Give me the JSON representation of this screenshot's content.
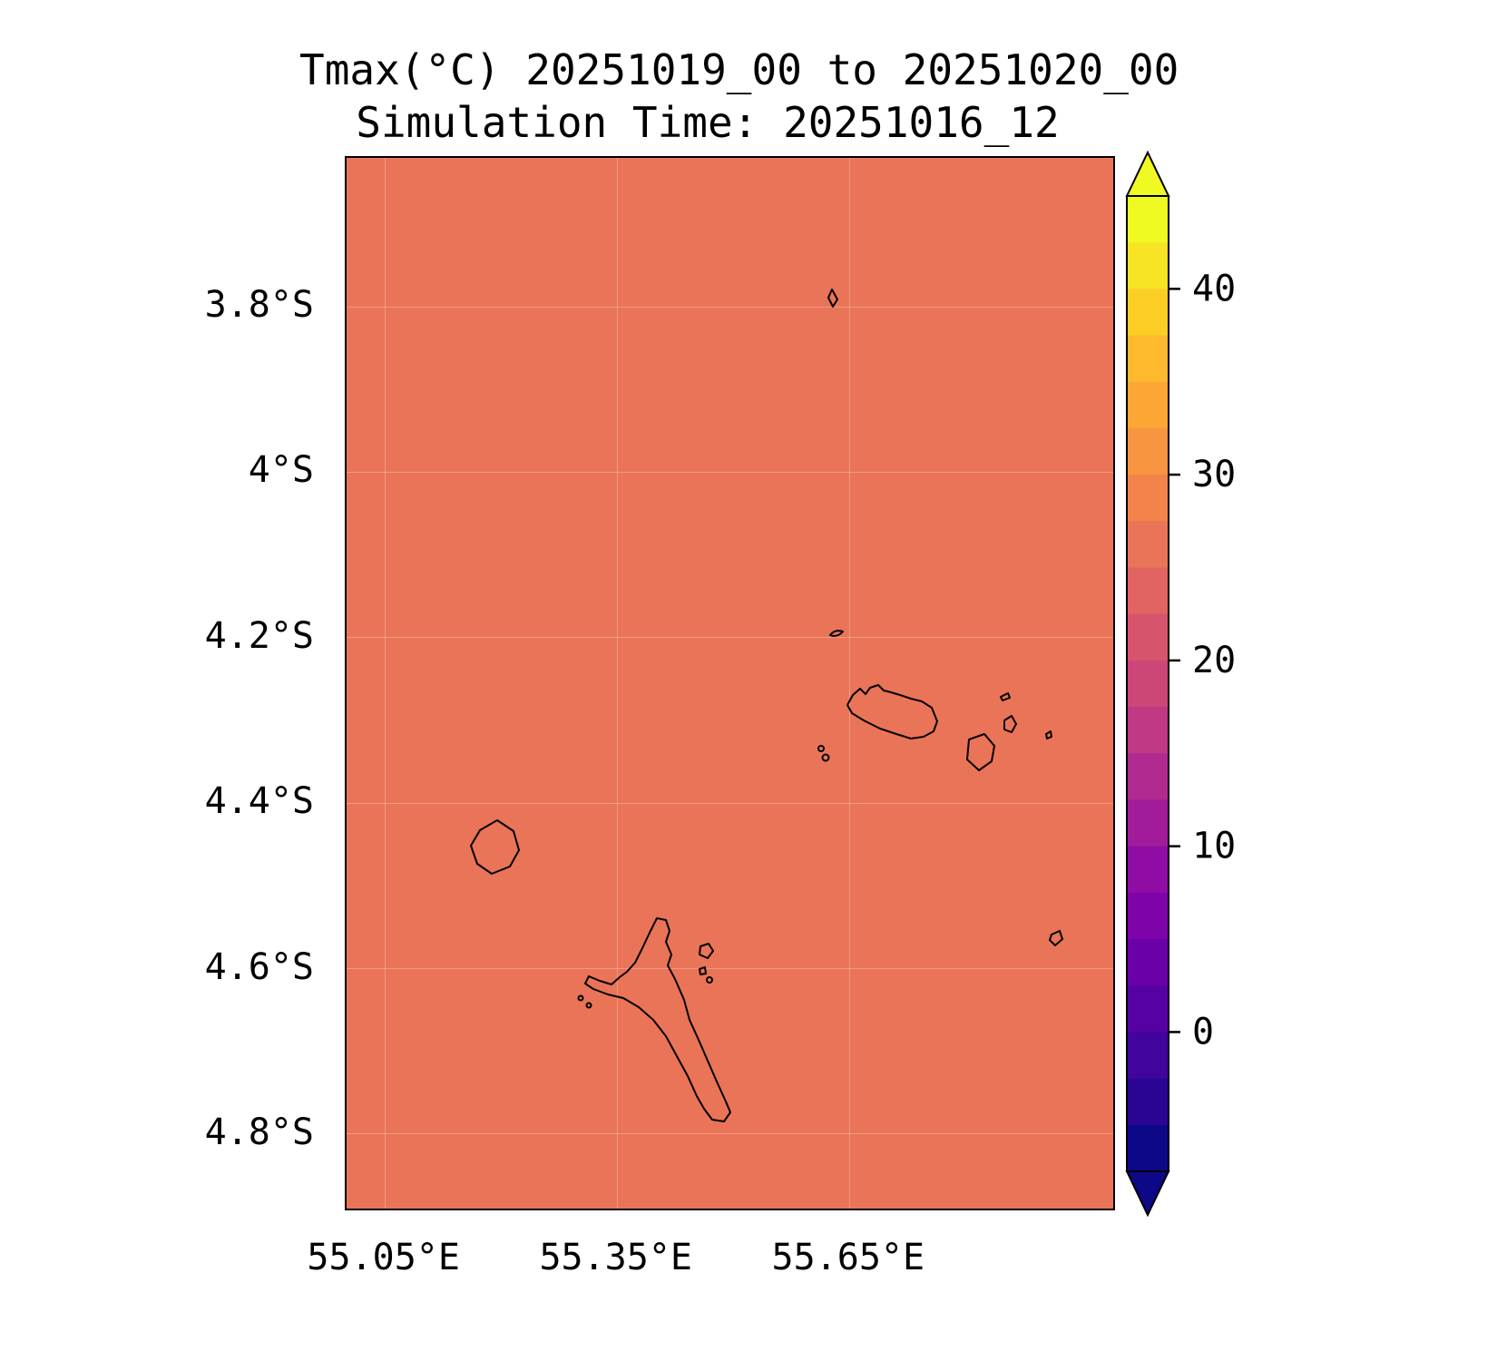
{
  "chart_data": {
    "type": "heatmap",
    "title": "Tmax(°C) 20251019_00 to 20251020_00",
    "subtitle": "Simulation Time: 20251016_12",
    "variable": "Tmax",
    "units": "°C",
    "valid_period": "20251019_00 to 20251020_00",
    "simulation_time": "20251016_12",
    "map_extent": {
      "lon_min": 55.0,
      "lon_max": 55.99,
      "lat_max": -3.62,
      "lat_min": -4.89
    },
    "field": {
      "description": "uniform maximum temperature field over Seychelles region",
      "approx_value_c": 26,
      "fill_color": "#ea7457"
    },
    "x_ticks": [
      {
        "label": "55.05°E",
        "lon": 55.05
      },
      {
        "label": "55.35°E",
        "lon": 55.35
      },
      {
        "label": "55.65°E",
        "lon": 55.65
      }
    ],
    "y_ticks": [
      {
        "label": "3.8°S",
        "lat": -3.8
      },
      {
        "label": "4°S",
        "lat": -4.0
      },
      {
        "label": "4.2°S",
        "lat": -4.2
      },
      {
        "label": "4.4°S",
        "lat": -4.4
      },
      {
        "label": "4.6°S",
        "lat": -4.6
      },
      {
        "label": "4.8°S",
        "lat": -4.8
      }
    ],
    "grid": true,
    "legend_position": "right",
    "colorbar": {
      "colormap": "plasma",
      "vmin": -7.5,
      "vmax": 45,
      "band_step": 2.5,
      "extend": "both",
      "ticks": [
        {
          "label": "40",
          "value": 40
        },
        {
          "label": "30",
          "value": 30
        },
        {
          "label": "20",
          "value": 20
        },
        {
          "label": "10",
          "value": 10
        },
        {
          "label": "0",
          "value": 0
        }
      ],
      "band_colors_bottom_to_top": [
        "#0d0887",
        "#2a0593",
        "#41049d",
        "#5601a4",
        "#6a00a8",
        "#7e03a8",
        "#8f0da4",
        "#a11b9b",
        "#b12a90",
        "#bf3984",
        "#cc4778",
        "#d6556d",
        "#e16462",
        "#ea7457",
        "#f2844b",
        "#f89540",
        "#fca636",
        "#feba2c",
        "#fcce25",
        "#f7e425",
        "#f0f921"
      ],
      "under_color": "#0d0887",
      "over_color": "#f0f921"
    }
  }
}
